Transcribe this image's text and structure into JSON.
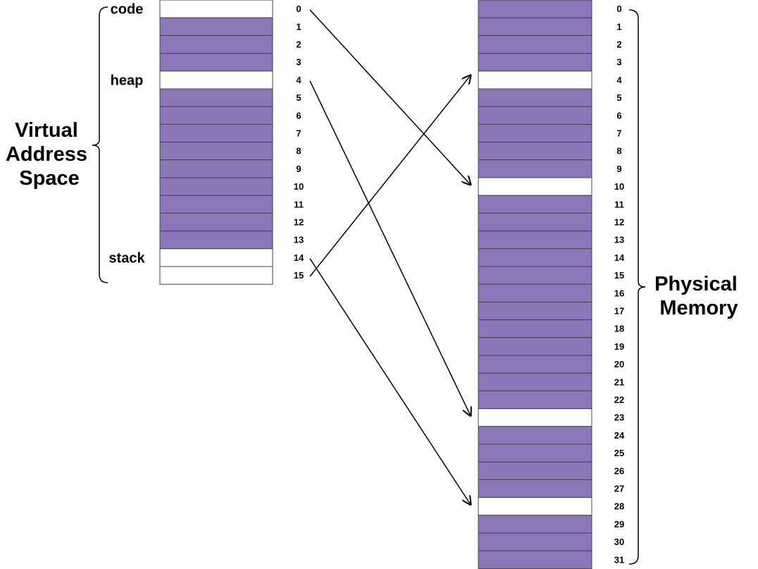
{
  "virtual": {
    "title_lines": [
      "Virtual",
      "Address",
      "Space"
    ],
    "segments": [
      {
        "label": "code",
        "page": 0
      },
      {
        "label": "heap",
        "page": 4
      },
      {
        "label": "stack",
        "page": 14
      }
    ],
    "page_count": 16,
    "page_numbers": [
      "0",
      "1",
      "2",
      "3",
      "4",
      "5",
      "6",
      "7",
      "8",
      "9",
      "10",
      "11",
      "12",
      "13",
      "14",
      "15"
    ],
    "highlighted_pages": [
      0,
      4,
      14,
      15
    ]
  },
  "physical": {
    "title_lines": [
      "Physical",
      "Memory"
    ],
    "frame_count": 32,
    "frame_numbers": [
      "0",
      "1",
      "2",
      "3",
      "4",
      "5",
      "6",
      "7",
      "8",
      "9",
      "10",
      "11",
      "12",
      "13",
      "14",
      "15",
      "16",
      "17",
      "18",
      "19",
      "20",
      "21",
      "22",
      "23",
      "24",
      "25",
      "26",
      "27",
      "28",
      "29",
      "30",
      "31"
    ],
    "highlighted_frames": [
      4,
      10,
      23,
      28
    ]
  },
  "mappings": [
    {
      "virtual_page": 0,
      "physical_frame": 10
    },
    {
      "virtual_page": 4,
      "physical_frame": 23
    },
    {
      "virtual_page": 14,
      "physical_frame": 28
    },
    {
      "virtual_page": 15,
      "physical_frame": 4
    }
  ],
  "colors": {
    "used_cell": "#8A76B8",
    "free_cell": "#FFFFFF",
    "border": "#444444",
    "line": "#000000"
  }
}
